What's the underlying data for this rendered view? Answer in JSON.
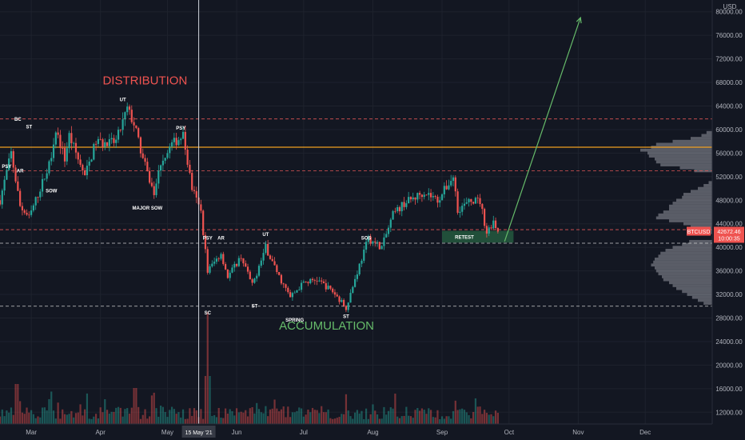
{
  "currency": "USD",
  "chart_data": {
    "type": "candlestick",
    "symbol": "BTCUSD",
    "price_axis": {
      "min": 10000,
      "max": 82000,
      "ticks": [
        12000,
        16000,
        20000,
        24000,
        28000,
        32000,
        36000,
        40000,
        44000,
        48000,
        52000,
        56000,
        60000,
        64000,
        68000,
        72000,
        76000,
        80000
      ],
      "tick_labels": [
        "12000.00",
        "16000.00",
        "20000.00",
        "24000.00",
        "28000.00",
        "32000.00",
        "36000.00",
        "40000.00",
        "44000.00",
        "48000.00",
        "52000.00",
        "56000.00",
        "60000.00",
        "64000.00",
        "68000.00",
        "72000.00",
        "76000.00",
        "80000.00"
      ]
    },
    "time_axis": {
      "start": "2021-02-15",
      "end": "2021-12-31",
      "months": [
        {
          "label": "Mar",
          "date": "2021-03-01"
        },
        {
          "label": "Apr",
          "date": "2021-04-01"
        },
        {
          "label": "May",
          "date": "2021-05-01"
        },
        {
          "label": "Jun",
          "date": "2021-06-01"
        },
        {
          "label": "Jul",
          "date": "2021-07-01"
        },
        {
          "label": "Aug",
          "date": "2021-08-01"
        },
        {
          "label": "Sep",
          "date": "2021-09-01"
        },
        {
          "label": "Oct",
          "date": "2021-10-01"
        },
        {
          "label": "Nov",
          "date": "2021-11-01"
        },
        {
          "label": "Dec",
          "date": "2021-12-01"
        }
      ]
    },
    "price_path": [
      [
        "2021-02-15",
        48000
      ],
      [
        "2021-02-20",
        56000
      ],
      [
        "2021-02-24",
        47000
      ],
      [
        "2021-02-28",
        45000
      ],
      [
        "2021-03-05",
        50000
      ],
      [
        "2021-03-09",
        54000
      ],
      [
        "2021-03-12",
        60000
      ],
      [
        "2021-03-16",
        55000
      ],
      [
        "2021-03-18",
        59000
      ],
      [
        "2021-03-20",
        57000
      ],
      [
        "2021-03-25",
        52000
      ],
      [
        "2021-03-30",
        58000
      ],
      [
        "2021-04-04",
        57500
      ],
      [
        "2021-04-08",
        58000
      ],
      [
        "2021-04-13",
        63500
      ],
      [
        "2021-04-16",
        61000
      ],
      [
        "2021-04-20",
        55000
      ],
      [
        "2021-04-25",
        49000
      ],
      [
        "2021-04-28",
        54500
      ],
      [
        "2021-05-03",
        57500
      ],
      [
        "2021-05-08",
        59000
      ],
      [
        "2021-05-12",
        50000
      ],
      [
        "2021-05-16",
        46000
      ],
      [
        "2021-05-19",
        36000
      ],
      [
        "2021-05-22",
        37500
      ],
      [
        "2021-05-25",
        39000
      ],
      [
        "2021-05-28",
        35000
      ],
      [
        "2021-06-03",
        38500
      ],
      [
        "2021-06-08",
        33500
      ],
      [
        "2021-06-14",
        40000
      ],
      [
        "2021-06-20",
        35000
      ],
      [
        "2021-06-25",
        31500
      ],
      [
        "2021-07-01",
        34000
      ],
      [
        "2021-07-07",
        34500
      ],
      [
        "2021-07-14",
        32500
      ],
      [
        "2021-07-20",
        29800
      ],
      [
        "2021-07-26",
        37000
      ],
      [
        "2021-07-30",
        41500
      ],
      [
        "2021-08-05",
        40000
      ],
      [
        "2021-08-10",
        45500
      ],
      [
        "2021-08-15",
        47500
      ],
      [
        "2021-08-20",
        48500
      ],
      [
        "2021-08-24",
        49500
      ],
      [
        "2021-08-30",
        48000
      ],
      [
        "2021-09-06",
        52000
      ],
      [
        "2021-09-08",
        46500
      ],
      [
        "2021-09-15",
        48000
      ],
      [
        "2021-09-18",
        47800
      ],
      [
        "2021-09-21",
        42500
      ],
      [
        "2021-09-24",
        44500
      ],
      [
        "2021-09-26",
        42672
      ]
    ],
    "horizontal_levels": [
      {
        "price": 61800,
        "style": "dashed",
        "color": "#e05555"
      },
      {
        "price": 57000,
        "style": "solid",
        "color": "#f0a020"
      },
      {
        "price": 53000,
        "style": "dashed",
        "color": "#e05555"
      },
      {
        "price": 43000,
        "style": "dashed",
        "color": "#e05555"
      },
      {
        "price": 40700,
        "style": "dashed",
        "color": "#cccccc"
      },
      {
        "price": 30000,
        "style": "dashed",
        "color": "#cccccc"
      }
    ],
    "zones": [
      {
        "label": "RETEST",
        "from_date": "2021-09-01",
        "to_date": "2021-10-03",
        "price_low": 40800,
        "price_high": 42800,
        "color": "#2e7d4f"
      }
    ],
    "arrow": {
      "from": [
        "2021-09-29",
        41000
      ],
      "to": [
        "2021-11-02",
        79000
      ],
      "color": "#66bb6a"
    },
    "crosshair_date": "2021-05-15",
    "annotations": [
      {
        "text": "PSY",
        "date": "2021-02-18",
        "price": 53500
      },
      {
        "text": "BC",
        "date": "2021-02-23",
        "price": 61500
      },
      {
        "text": "ST",
        "date": "2021-02-28",
        "price": 60200
      },
      {
        "text": "AR",
        "date": "2021-02-24",
        "price": 52700
      },
      {
        "text": "SOW",
        "date": "2021-03-10",
        "price": 49300
      },
      {
        "text": "UT",
        "date": "2021-04-11",
        "price": 64800
      },
      {
        "text": "PSY",
        "date": "2021-05-07",
        "price": 60000
      },
      {
        "text": "MAJOR SOW",
        "date": "2021-04-22",
        "price": 46400
      },
      {
        "text": "PSY",
        "date": "2021-05-19",
        "price": 41300
      },
      {
        "text": "AR",
        "date": "2021-05-25",
        "price": 41300
      },
      {
        "text": "UT",
        "date": "2021-06-14",
        "price": 41900
      },
      {
        "text": "SOS",
        "date": "2021-07-29",
        "price": 41300
      },
      {
        "text": "SC",
        "date": "2021-05-19",
        "price": 28600
      },
      {
        "text": "ST",
        "date": "2021-06-09",
        "price": 29800
      },
      {
        "text": "SPRING",
        "date": "2021-06-27",
        "price": 27400
      },
      {
        "text": "ST",
        "date": "2021-07-20",
        "price": 28000
      }
    ],
    "phase_labels": [
      {
        "text": "DISTRIBUTION",
        "date": "2021-04-02",
        "price": 67700,
        "color": "#ef5350"
      },
      {
        "text": "ACCUMULATION",
        "date": "2021-06-20",
        "price": 26000,
        "color": "#66bb6a"
      }
    ],
    "volume_profile": [
      [
        59500,
        0.08
      ],
      [
        59000,
        0.15
      ],
      [
        58500,
        0.3
      ],
      [
        58000,
        0.55
      ],
      [
        57500,
        0.78
      ],
      [
        57000,
        0.85
      ],
      [
        56500,
        1.0
      ],
      [
        56000,
        0.9
      ],
      [
        55500,
        0.88
      ],
      [
        55000,
        0.8
      ],
      [
        54500,
        0.78
      ],
      [
        54000,
        0.72
      ],
      [
        53500,
        0.45
      ],
      [
        53000,
        0.25
      ],
      [
        51000,
        0.05
      ],
      [
        50500,
        0.12
      ],
      [
        50000,
        0.2
      ],
      [
        49500,
        0.3
      ],
      [
        49000,
        0.4
      ],
      [
        48500,
        0.42
      ],
      [
        48000,
        0.5
      ],
      [
        47500,
        0.55
      ],
      [
        47000,
        0.6
      ],
      [
        46500,
        0.6
      ],
      [
        46000,
        0.68
      ],
      [
        45500,
        0.75
      ],
      [
        45000,
        0.78
      ],
      [
        44500,
        0.6
      ],
      [
        44000,
        0.4
      ],
      [
        43500,
        0.3
      ],
      [
        43000,
        0.25
      ],
      [
        42500,
        0.25
      ],
      [
        41000,
        0.32
      ],
      [
        40500,
        0.42
      ],
      [
        40000,
        0.55
      ],
      [
        39500,
        0.65
      ],
      [
        39000,
        0.72
      ],
      [
        38500,
        0.75
      ],
      [
        38000,
        0.8
      ],
      [
        37500,
        0.82
      ],
      [
        37000,
        0.85
      ],
      [
        36500,
        0.8
      ],
      [
        36000,
        0.78
      ],
      [
        35500,
        0.75
      ],
      [
        35000,
        0.7
      ],
      [
        34500,
        0.68
      ],
      [
        34000,
        0.6
      ],
      [
        33500,
        0.55
      ],
      [
        33000,
        0.5
      ],
      [
        32500,
        0.42
      ],
      [
        32000,
        0.35
      ],
      [
        31500,
        0.28
      ],
      [
        31000,
        0.2
      ],
      [
        30500,
        0.12
      ]
    ],
    "last_price_badge": {
      "symbol": "BTCUSD",
      "price": "42672.46",
      "countdown": "10:00:35",
      "color": "#ef5350"
    },
    "crosshair_date_label": "15 May '21"
  }
}
